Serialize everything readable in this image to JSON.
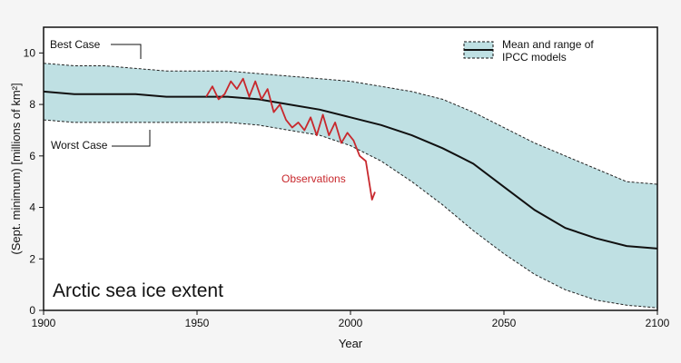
{
  "chart_data": {
    "type": "area",
    "title": "Arctic sea ice extent",
    "xlabel": "Year",
    "ylabel": "(Sept. minimum) [millions of km²]",
    "xlim": [
      1900,
      2100
    ],
    "ylim": [
      0,
      11
    ],
    "x_ticks": [
      "1900",
      "1950",
      "2000",
      "2050",
      "2100"
    ],
    "y_ticks": [
      "0",
      "2",
      "4",
      "6",
      "8",
      "10"
    ],
    "grid": false,
    "legend": {
      "position": "top-right",
      "label_line1": "Mean and range of",
      "label_line2": "IPCC models"
    },
    "annotations": {
      "best_case": "Best Case",
      "worst_case": "Worst Case",
      "observations": "Observations"
    },
    "colors": {
      "band": "#bfe0e3",
      "mean": "#111111",
      "observations": "#c8282d"
    },
    "series": [
      {
        "name": "Mean and range of IPCC models — upper bound",
        "x": [
          1900,
          1910,
          1920,
          1930,
          1940,
          1950,
          1960,
          1970,
          1980,
          1990,
          2000,
          2010,
          2020,
          2030,
          2040,
          2050,
          2060,
          2070,
          2080,
          2090,
          2100
        ],
        "values": [
          9.6,
          9.5,
          9.5,
          9.4,
          9.3,
          9.3,
          9.3,
          9.2,
          9.1,
          9.0,
          8.9,
          8.7,
          8.5,
          8.2,
          7.7,
          7.1,
          6.5,
          6.0,
          5.5,
          5.0,
          4.9
        ]
      },
      {
        "name": "Mean and range of IPCC models — mean",
        "x": [
          1900,
          1910,
          1920,
          1930,
          1940,
          1950,
          1960,
          1970,
          1980,
          1990,
          2000,
          2010,
          2020,
          2030,
          2040,
          2050,
          2060,
          2070,
          2080,
          2090,
          2100
        ],
        "values": [
          8.5,
          8.4,
          8.4,
          8.4,
          8.3,
          8.3,
          8.3,
          8.2,
          8.0,
          7.8,
          7.5,
          7.2,
          6.8,
          6.3,
          5.7,
          4.8,
          3.9,
          3.2,
          2.8,
          2.5,
          2.4
        ]
      },
      {
        "name": "Mean and range of IPCC models — lower bound",
        "x": [
          1900,
          1910,
          1920,
          1930,
          1940,
          1950,
          1960,
          1970,
          1980,
          1990,
          2000,
          2010,
          2020,
          2030,
          2040,
          2050,
          2060,
          2070,
          2080,
          2090,
          2100
        ],
        "values": [
          7.4,
          7.3,
          7.3,
          7.3,
          7.3,
          7.3,
          7.3,
          7.2,
          7.0,
          6.8,
          6.4,
          5.8,
          5.0,
          4.1,
          3.1,
          2.2,
          1.4,
          0.8,
          0.4,
          0.2,
          0.1
        ]
      },
      {
        "name": "Observations",
        "x": [
          1953,
          1955,
          1957,
          1959,
          1961,
          1963,
          1965,
          1967,
          1969,
          1971,
          1973,
          1975,
          1977,
          1979,
          1981,
          1983,
          1985,
          1987,
          1989,
          1991,
          1993,
          1995,
          1997,
          1999,
          2001,
          2003,
          2005,
          2007,
          2008
        ],
        "values": [
          8.3,
          8.7,
          8.2,
          8.4,
          8.9,
          8.6,
          9.0,
          8.3,
          8.9,
          8.2,
          8.6,
          7.7,
          8.0,
          7.4,
          7.1,
          7.3,
          7.0,
          7.5,
          6.8,
          7.6,
          6.8,
          7.3,
          6.5,
          6.9,
          6.6,
          6.0,
          5.8,
          4.3,
          4.6
        ]
      }
    ]
  }
}
